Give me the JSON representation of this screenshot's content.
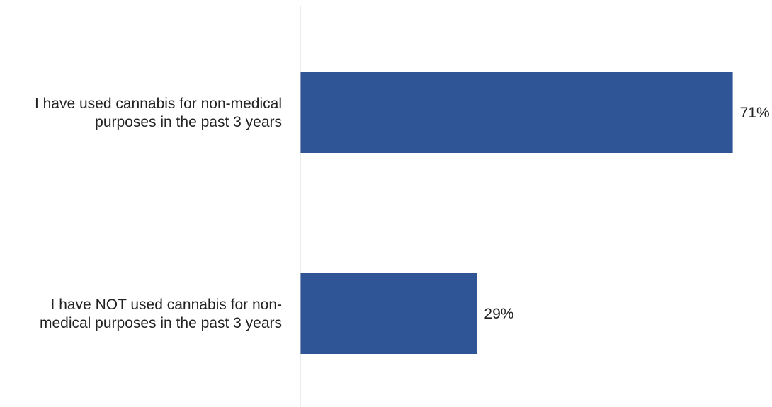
{
  "chart_data": {
    "type": "bar",
    "orientation": "horizontal",
    "categories": [
      [
        "I have used cannabis for non-medical",
        "purposes in the past 3 years"
      ],
      [
        "I have NOT used cannabis for non-",
        "medical purposes in the past 3 years"
      ]
    ],
    "values": [
      71,
      29
    ],
    "data_labels": [
      "71%",
      "29%"
    ],
    "xlim": [
      0,
      100
    ],
    "grid": false,
    "legend": "none",
    "bar_color": "#2f5597",
    "axis_line_color": "#d9d9d9"
  }
}
